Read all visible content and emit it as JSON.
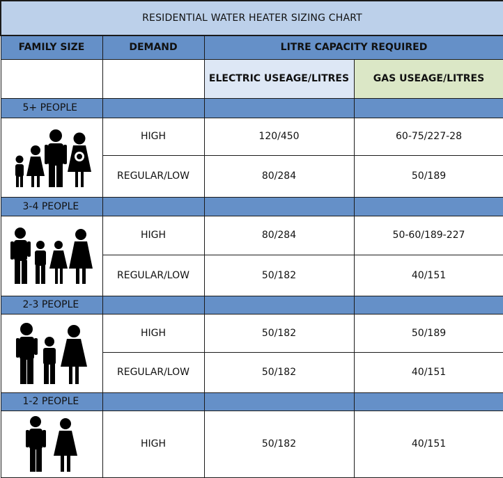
{
  "title": "RESIDENTIAL WATER HEATER SIZING CHART",
  "headers": {
    "family_size": "FAMILY SIZE",
    "demand": "DEMAND",
    "capacity": "LITRE CAPACITY REQUIRED",
    "electric": "ELECTRIC USEAGE/LITRES",
    "gas": "GAS USEAGE/LITRES"
  },
  "icons": {
    "family_5": "family-of-five-icon",
    "family_4": "family-of-four-icon",
    "family_3": "family-of-three-icon",
    "family_2": "couple-icon"
  },
  "sections": [
    {
      "label": "5+ PEOPLE",
      "rows": [
        {
          "demand": "HIGH",
          "electric": "120/450",
          "gas": "60-75/227-28"
        },
        {
          "demand": "REGULAR/LOW",
          "electric": "80/284",
          "gas": "50/189"
        }
      ]
    },
    {
      "label": "3-4 PEOPLE",
      "rows": [
        {
          "demand": "HIGH",
          "electric": "80/284",
          "gas": "50-60/189-227"
        },
        {
          "demand": "REGULAR/LOW",
          "electric": "50/182",
          "gas": "40/151"
        }
      ]
    },
    {
      "label": "2-3 PEOPLE",
      "rows": [
        {
          "demand": "HIGH",
          "electric": "50/182",
          "gas": "50/189"
        },
        {
          "demand": "REGULAR/LOW",
          "electric": "50/182",
          "gas": "40/151"
        }
      ]
    },
    {
      "label": "1-2 PEOPLE",
      "rows": [
        {
          "demand": "HIGH",
          "electric": "50/182",
          "gas": "40/151"
        }
      ]
    }
  ]
}
